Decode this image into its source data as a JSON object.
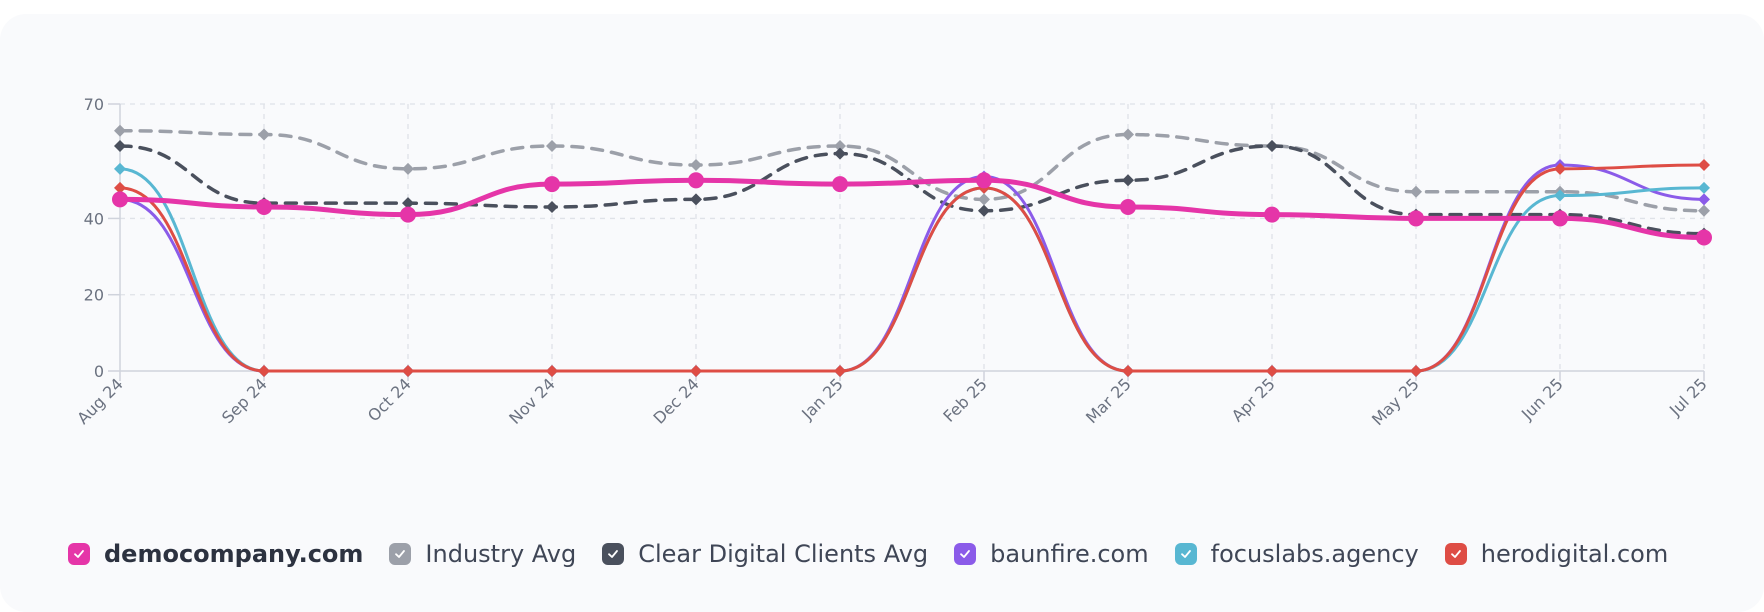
{
  "chart_data": {
    "type": "line",
    "categories": [
      "Aug 24",
      "Sep 24",
      "Oct 24",
      "Nov 24",
      "Dec 24",
      "Jan 25",
      "Feb 25",
      "Mar 25",
      "Apr 25",
      "May 25",
      "Jun 25",
      "Jul 25"
    ],
    "ylim": [
      0,
      70
    ],
    "yticks": [
      0,
      20,
      40,
      70
    ],
    "grid": true,
    "legend_position": "bottom",
    "series": [
      {
        "name": "Industry Avg",
        "color": "#9ca0a9",
        "dashed": true,
        "values": [
          63,
          62,
          53,
          59,
          54,
          59,
          45,
          62,
          59,
          47,
          47,
          42
        ]
      },
      {
        "name": "Clear Digital Clients Avg",
        "color": "#4a505d",
        "dashed": true,
        "values": [
          59,
          44,
          44,
          43,
          45,
          57,
          42,
          50,
          59,
          41,
          41,
          36
        ]
      },
      {
        "name": "baunfire.com",
        "color": "#8b5be9",
        "values": [
          45,
          0,
          0,
          0,
          0,
          0,
          51,
          0,
          0,
          0,
          54,
          45
        ]
      },
      {
        "name": "focuslabs.agency",
        "color": "#58b7d2",
        "values": [
          53,
          0,
          0,
          0,
          0,
          0,
          48,
          0,
          0,
          0,
          46,
          48
        ]
      },
      {
        "name": "herodigital.com",
        "color": "#de4d45",
        "values": [
          48,
          0,
          0,
          0,
          0,
          0,
          48,
          0,
          0,
          0,
          53,
          54
        ]
      },
      {
        "name": "democompany.com",
        "color": "#e535a8",
        "primary": true,
        "values": [
          45,
          43,
          41,
          49,
          50,
          49,
          50,
          43,
          41,
          40,
          40,
          35
        ]
      }
    ]
  },
  "legend": [
    {
      "label": "democompany.com",
      "color": "#e535a8",
      "icon": "check-icon"
    },
    {
      "label": "Industry Avg",
      "color": "#9ca0a9",
      "icon": "check-icon"
    },
    {
      "label": "Clear Digital Clients Avg",
      "color": "#4a505d",
      "icon": "check-icon"
    },
    {
      "label": "baunfire.com",
      "color": "#8b5be9",
      "icon": "check-icon"
    },
    {
      "label": "focuslabs.agency",
      "color": "#58b7d2",
      "icon": "check-icon"
    },
    {
      "label": "herodigital.com",
      "color": "#de4d45",
      "icon": "check-icon"
    }
  ]
}
